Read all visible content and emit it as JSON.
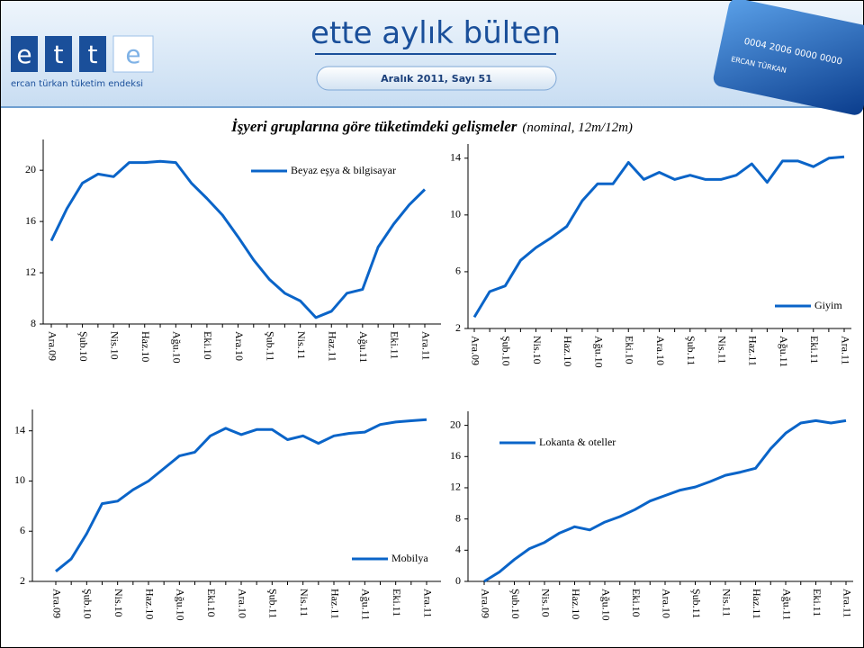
{
  "header": {
    "logo_letters": [
      "e",
      "t",
      "t",
      "e"
    ],
    "logo_caption": "ercan türkan tüketim endeksi",
    "title": "ette aylık bülten",
    "subtitle": "Aralık 2011, Sayı 51",
    "card_number": "0004 2006 0000 0000",
    "card_name": "ERCAN TÜRKAN"
  },
  "title": {
    "main": "İşyeri gruplarına göre tüketimdeki gelişmeler",
    "note": "(nominal, 12m/12m)"
  },
  "chart_data": [
    {
      "type": "line",
      "categories": [
        "Ara.09",
        null,
        "Şub.10",
        null,
        "Nis.10",
        null,
        "Haz.10",
        null,
        "Ağu.10",
        null,
        "Eki.10",
        null,
        "Ara.10",
        null,
        "Şub.11",
        null,
        "Nis.11",
        null,
        "Haz.11",
        null,
        "Ağu.11",
        null,
        "Eki.11",
        null,
        "Ara.11"
      ],
      "series": [
        {
          "name": "Beyaz eşya & bilgisayar",
          "color": "#0a64c8",
          "values": [
            14.5,
            17.0,
            19.0,
            19.7,
            19.5,
            20.6,
            20.6,
            20.7,
            20.6,
            19.0,
            17.8,
            16.5,
            14.8,
            13.0,
            11.5,
            10.4,
            9.8,
            8.5,
            9.0,
            10.4,
            10.7,
            14.0,
            15.8,
            17.3,
            18.5
          ]
        }
      ],
      "ylim": [
        8,
        22.4
      ],
      "yticks": [
        8,
        12,
        16,
        20
      ],
      "legend": "upper right"
    },
    {
      "type": "line",
      "categories": [
        "Ara.09",
        null,
        "Şub.10",
        null,
        "Nis.10",
        null,
        "Haz.10",
        null,
        "Ağu.10",
        null,
        "Eki.10",
        null,
        "Ara.10",
        null,
        "Şub.11",
        null,
        "Nis.11",
        null,
        "Haz.11",
        null,
        "Ağu.11",
        null,
        "Eki.11",
        null,
        "Ara.11"
      ],
      "series": [
        {
          "name": "Giyim",
          "color": "#0a64c8",
          "values": [
            2.8,
            4.6,
            5.0,
            6.8,
            7.7,
            8.4,
            9.2,
            11.0,
            12.2,
            12.2,
            13.7,
            12.5,
            13.0,
            12.5,
            12.8,
            12.5,
            12.5,
            12.8,
            13.6,
            12.3,
            13.8,
            13.8,
            13.4,
            14.0,
            14.1
          ]
        }
      ],
      "ylim": [
        2,
        15
      ],
      "yticks": [
        2,
        6,
        10,
        14
      ],
      "legend": "lower right"
    },
    {
      "type": "line",
      "categories": [
        "Ara.09",
        null,
        "Şub.10",
        null,
        "Nis.10",
        null,
        "Haz.10",
        null,
        "Ağu.10",
        null,
        "Eki.10",
        null,
        "Ara.10",
        null,
        "Şub.11",
        null,
        "Nis.11",
        null,
        "Haz.11",
        null,
        "Ağu.11",
        null,
        "Eki.11",
        null,
        "Ara.11"
      ],
      "series": [
        {
          "name": "Mobilya",
          "color": "#0a64c8",
          "values": [
            2.8,
            3.8,
            5.8,
            8.2,
            8.4,
            9.3,
            10.0,
            11.0,
            12.0,
            12.3,
            13.6,
            14.2,
            13.7,
            14.1,
            14.1,
            13.3,
            13.6,
            13.0,
            13.6,
            13.8,
            13.9,
            14.5,
            14.7,
            14.8,
            14.9
          ]
        }
      ],
      "ylim": [
        2,
        15.7
      ],
      "yticks": [
        2,
        6,
        10,
        14
      ],
      "legend": "lower right"
    },
    {
      "type": "line",
      "categories": [
        "Ara.09",
        null,
        "Şub.10",
        null,
        "Nis.10",
        null,
        "Haz.10",
        null,
        "Ağu.10",
        null,
        "Eki.10",
        null,
        "Ara.10",
        null,
        "Şub.11",
        null,
        "Nis.11",
        null,
        "Haz.11",
        null,
        "Ağu.11",
        null,
        "Eki.11",
        null,
        "Ara.11"
      ],
      "series": [
        {
          "name": "Lokanta & oteller",
          "color": "#0a64c8",
          "values": [
            0,
            1.2,
            2.8,
            4.2,
            5.0,
            6.2,
            7.0,
            6.6,
            7.6,
            8.3,
            9.2,
            10.3,
            11.0,
            11.7,
            12.1,
            12.8,
            13.6,
            14.0,
            14.5,
            17.0,
            19.0,
            20.3,
            20.6,
            20.3,
            20.6
          ]
        }
      ],
      "ylim": [
        0,
        21.8
      ],
      "yticks": [
        0,
        4,
        8,
        12,
        16,
        20
      ],
      "legend": "upper left"
    }
  ]
}
